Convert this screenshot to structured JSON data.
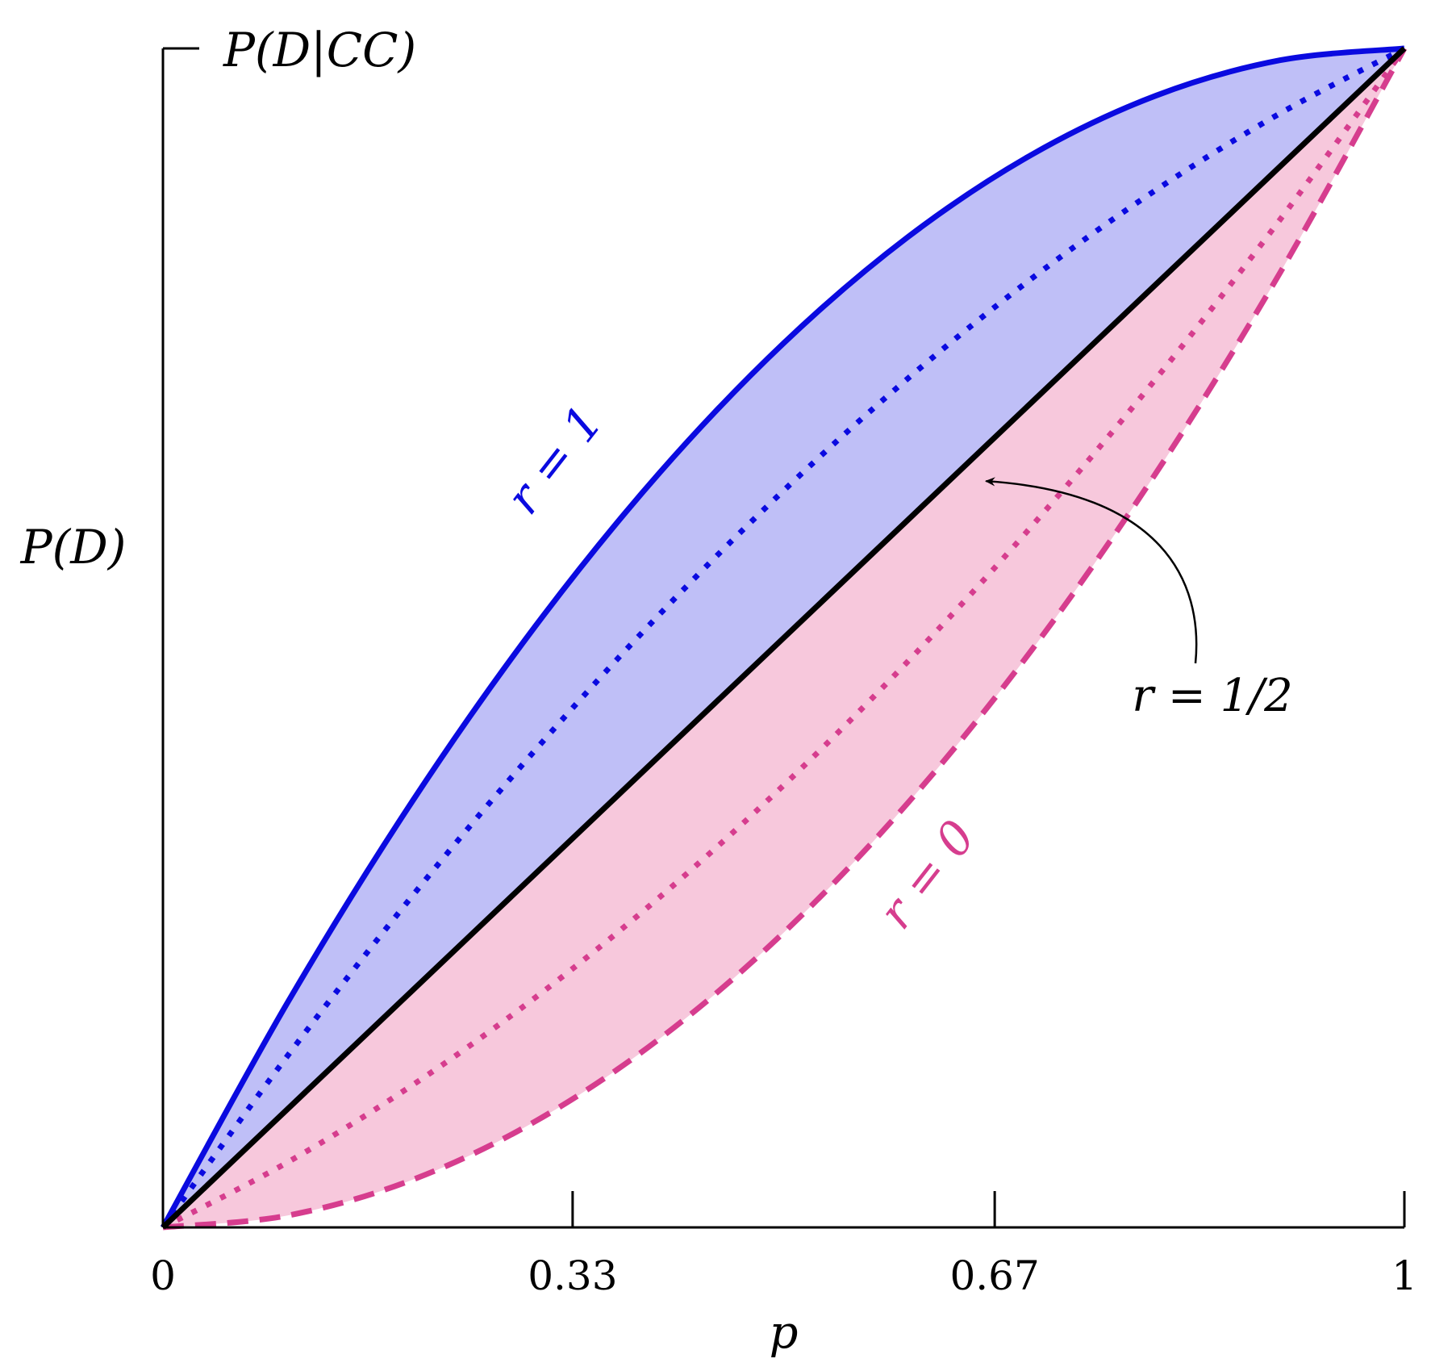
{
  "chart_data": {
    "type": "line",
    "xlabel": "p",
    "ylabel": "P(D)",
    "y_top_label": "P(D|CC)",
    "xlim": [
      0,
      1
    ],
    "ylim": [
      0,
      1
    ],
    "x_ticks": [
      {
        "value": 0.33,
        "label": "0.33"
      },
      {
        "value": 0.67,
        "label": "0.67"
      },
      {
        "value": 1,
        "label": "1"
      }
    ],
    "x_tick_labels": [
      {
        "value": 0,
        "label": "0"
      },
      {
        "value": 0.33,
        "label": "0.33"
      },
      {
        "value": 0.67,
        "label": "0.67"
      },
      {
        "value": 1,
        "label": "1"
      }
    ],
    "grid": false,
    "x": [
      0,
      0.1,
      0.2,
      0.3,
      0.4,
      0.5,
      0.6,
      0.7,
      0.8,
      0.9,
      1
    ],
    "series": [
      {
        "name": "",
        "style": "solid",
        "color": "#0a0ae0",
        "values": [
          0,
          0.19,
          0.36,
          0.51,
          0.64,
          0.75,
          0.84,
          0.91,
          0.96,
          0.99,
          1
        ]
      },
      {
        "name": "",
        "style": "dotted",
        "color": "#0a0ae0",
        "values": [
          0,
          0.145,
          0.28,
          0.405,
          0.52,
          0.625,
          0.72,
          0.805,
          0.88,
          0.945,
          1
        ]
      },
      {
        "name": "",
        "style": "solid",
        "color": "#000000",
        "values": [
          0,
          0.1,
          0.2,
          0.3,
          0.4,
          0.5,
          0.6,
          0.7,
          0.8,
          0.9,
          1
        ]
      },
      {
        "name": "",
        "style": "dotted",
        "color": "#d63d8e",
        "values": [
          0,
          0.055,
          0.12,
          0.195,
          0.28,
          0.375,
          0.48,
          0.595,
          0.72,
          0.855,
          1
        ]
      },
      {
        "name": "",
        "style": "dashed",
        "color": "#d63d8e",
        "values": [
          0,
          0.01,
          0.04,
          0.09,
          0.16,
          0.25,
          0.36,
          0.49,
          0.64,
          0.81,
          1
        ]
      }
    ],
    "bands": [
      {
        "between": [
          0,
          2
        ],
        "color": "#bfbff7"
      },
      {
        "between": [
          2,
          4
        ],
        "color": "#f7c8dc"
      }
    ],
    "annotations": [
      {
        "text": "r = 1",
        "color": "#0a0ae0"
      },
      {
        "text": "r = 0",
        "color": "#d63d8e"
      },
      {
        "text": "r = 1/2",
        "color": "#000000",
        "arrow_to": {
          "x": 0.663,
          "y": 0.633
        }
      }
    ]
  }
}
